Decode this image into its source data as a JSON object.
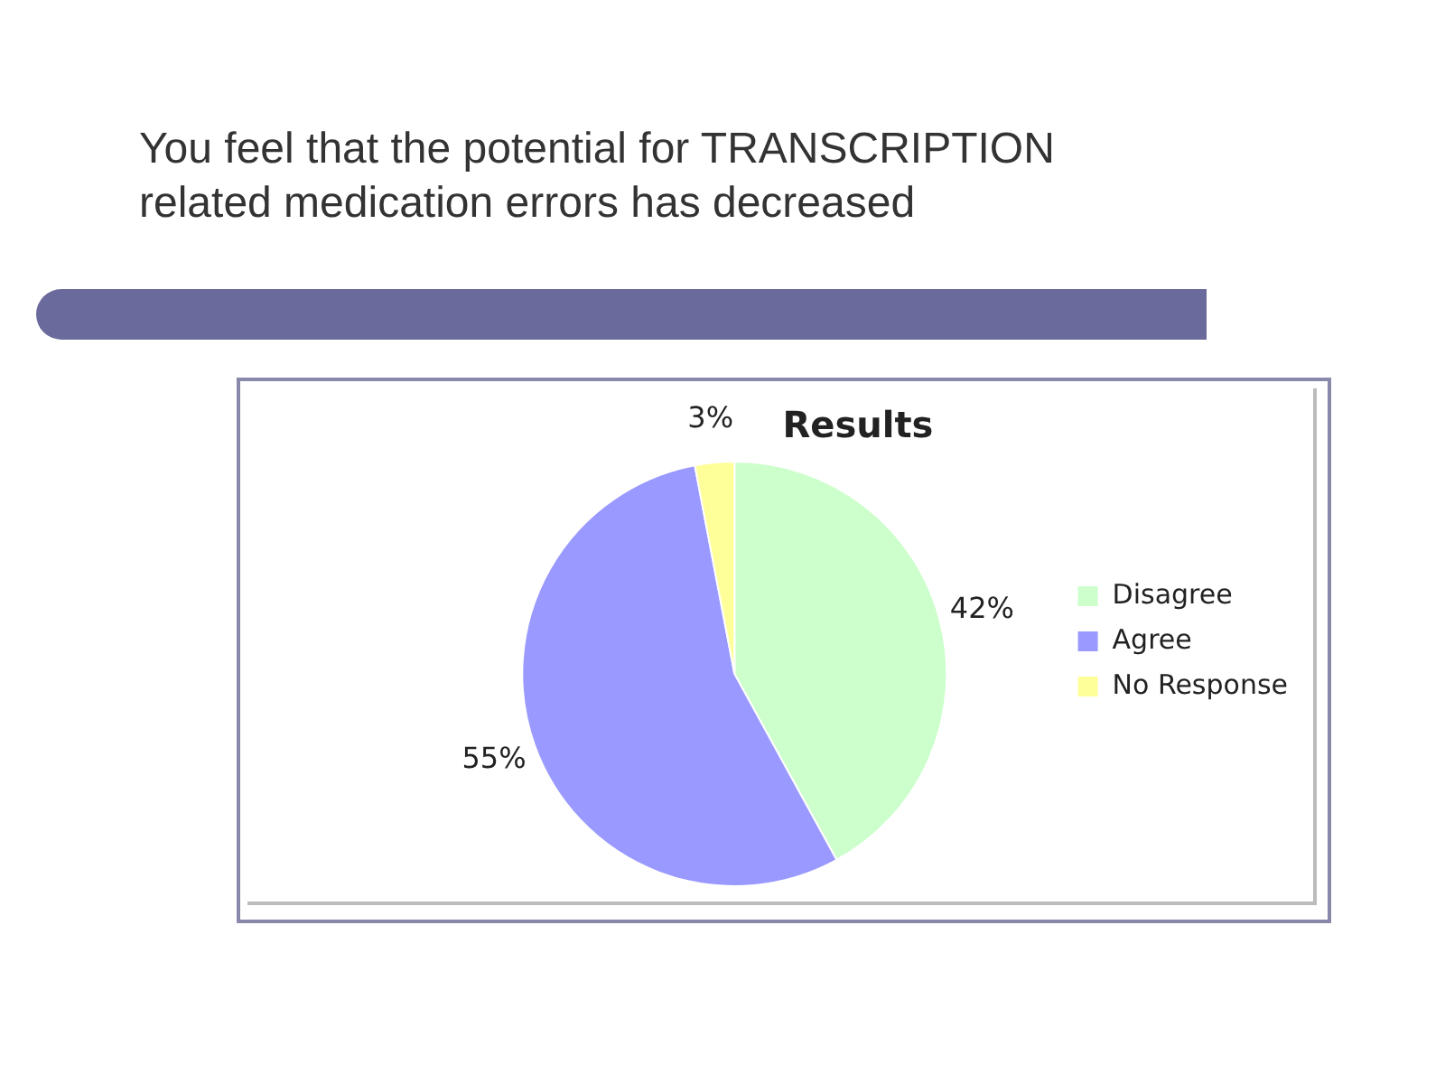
{
  "chart_data": {
    "type": "pie",
    "title": "You feel that the potential for TRANSCRIPTION related medication errors has decreased",
    "subtitle": "Results",
    "categories": [
      "Disagree",
      "Agree",
      "No Response"
    ],
    "values": [
      42,
      55,
      3
    ],
    "colors": [
      "#ccffcc",
      "#9999ff",
      "#ffff99"
    ],
    "value_labels": [
      "42%",
      "55%",
      "3%"
    ],
    "legend": "right"
  }
}
